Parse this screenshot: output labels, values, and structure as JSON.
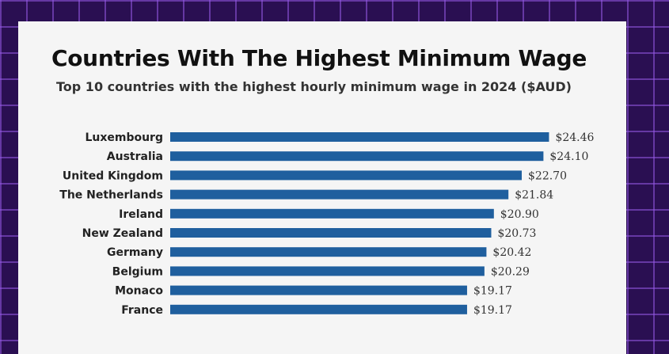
{
  "chart_data": {
    "type": "bar",
    "orientation": "horizontal",
    "title": "Countries With The Highest Minimum Wage",
    "subtitle": "Top 10 countries with the highest hourly minimum wage in 2024 ($AUD)",
    "categories": [
      "Luxembourg",
      "Australia",
      "United Kingdom",
      "The Netherlands",
      "Ireland",
      "New Zealand",
      "Germany",
      "Belgium",
      "Monaco",
      "France"
    ],
    "values": [
      24.46,
      24.1,
      22.7,
      21.84,
      20.9,
      20.73,
      20.42,
      20.29,
      19.17,
      19.17
    ],
    "value_labels": [
      "$24.46",
      "$24.10",
      "$22.70",
      "$21.84",
      "$20.90",
      "$20.73",
      "$20.42",
      "$20.29",
      "$19.17",
      "$19.17"
    ],
    "bar_color": "#1f5f9e",
    "grid": false,
    "legend": "none"
  },
  "colors": {
    "background": "#2a0f52",
    "grid_lines": "#9a5ae6",
    "card": "#f5f5f5"
  }
}
